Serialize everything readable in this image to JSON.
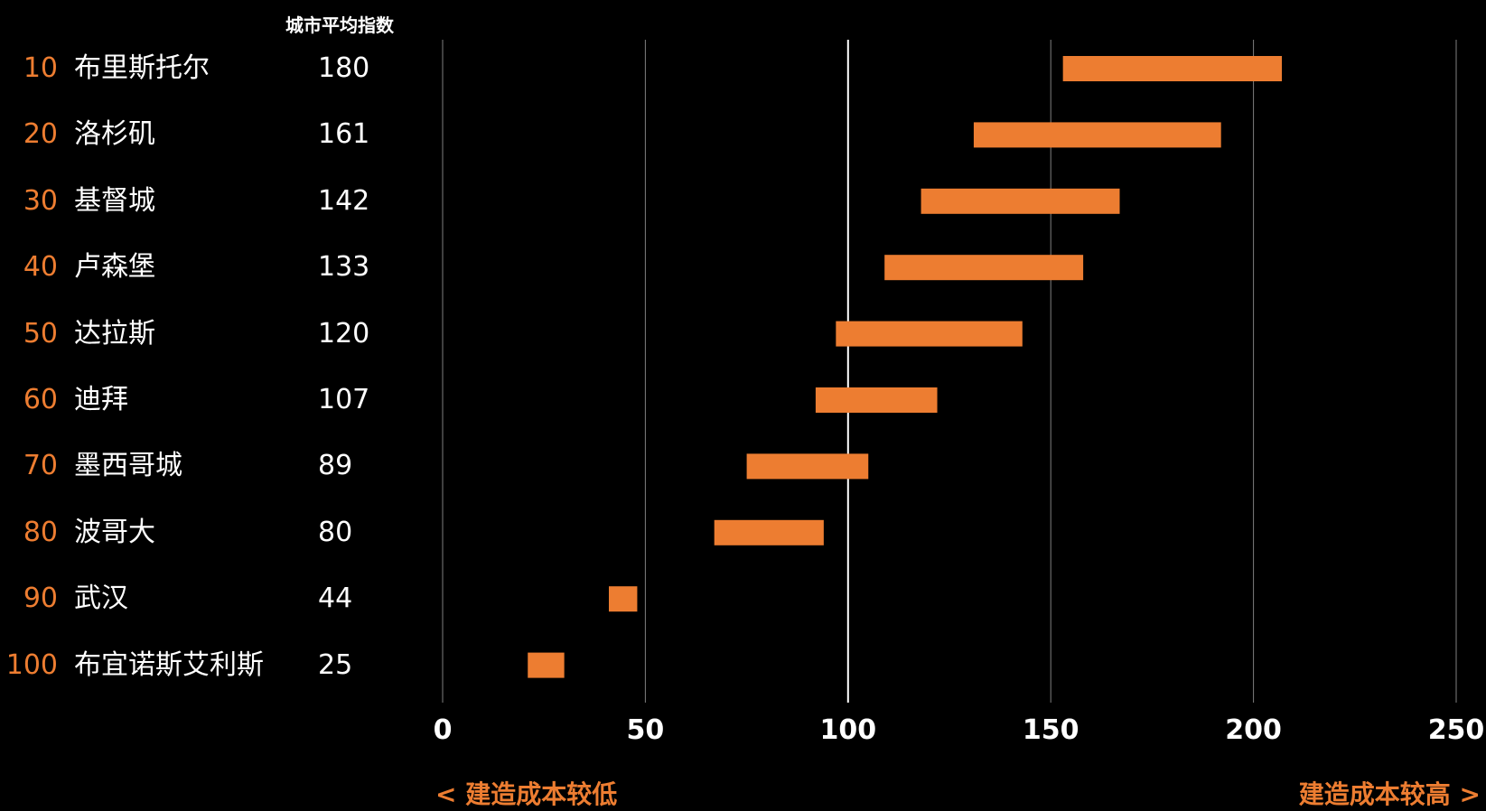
{
  "chart_data": {
    "type": "bar",
    "subtype": "floating-range",
    "column_header": "城市平均指数",
    "rows": [
      {
        "rank": "10",
        "city": "布里斯托尔",
        "average": 180,
        "low": 153,
        "high": 207
      },
      {
        "rank": "20",
        "city": "洛杉矶",
        "average": 161,
        "low": 131,
        "high": 192
      },
      {
        "rank": "30",
        "city": "基督城",
        "average": 142,
        "low": 118,
        "high": 167
      },
      {
        "rank": "40",
        "city": "卢森堡",
        "average": 133,
        "low": 109,
        "high": 158
      },
      {
        "rank": "50",
        "city": "达拉斯",
        "average": 120,
        "low": 97,
        "high": 143
      },
      {
        "rank": "60",
        "city": "迪拜",
        "average": 107,
        "low": 92,
        "high": 122
      },
      {
        "rank": "70",
        "city": "墨西哥城",
        "average": 89,
        "low": 75,
        "high": 105
      },
      {
        "rank": "80",
        "city": "波哥大",
        "average": 80,
        "low": 67,
        "high": 94
      },
      {
        "rank": "90",
        "city": "武汉",
        "average": 44,
        "low": 41,
        "high": 48
      },
      {
        "rank": "100",
        "city": "布宜诺斯艾利斯",
        "average": 25,
        "low": 21,
        "high": 30
      }
    ],
    "x_ticks": [
      "0",
      "50",
      "100",
      "150",
      "200",
      "250"
    ],
    "xlim": [
      0,
      250
    ],
    "reference_line": 100,
    "grid": true,
    "note_left": "< 建造成本较低",
    "note_right": "建造成本较高 >",
    "colors": {
      "bar": "#ED7D31",
      "rank": "#ED7D31",
      "note": "#ED7D31",
      "text": "#FFFFFF",
      "background": "#000000",
      "grid": "#7F7F7F",
      "reference": "#FFFFFF"
    }
  }
}
